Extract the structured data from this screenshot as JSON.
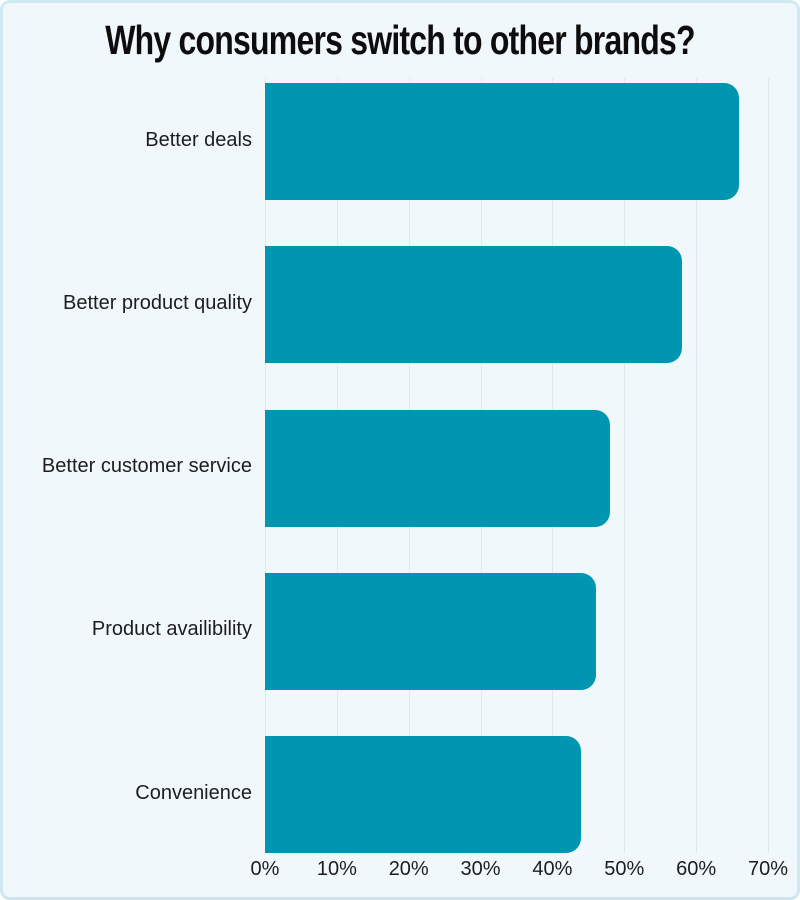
{
  "title": "Why consumers switch to other brands?",
  "colors": {
    "bar": "#0096b2",
    "card_background": "#f1f8fb",
    "card_border": "#cfe9f2",
    "gridline": "#e4e8ec",
    "title_text": "#0d0d0d",
    "label_text": "#1d1d1f"
  },
  "chart_data": {
    "type": "bar",
    "orientation": "horizontal",
    "title": "Why consumers switch to other brands?",
    "categories": [
      "Better deals",
      "Better product quality",
      "Better customer service",
      "Product availibility",
      "Convenience"
    ],
    "values": [
      66,
      58,
      48,
      46,
      44
    ],
    "unit": "%",
    "xlabel": "",
    "ylabel": "",
    "xlim": [
      0,
      70
    ],
    "x_tick_labels": [
      "0%",
      "10%",
      "20%",
      "30%",
      "40%",
      "50%",
      "60%",
      "70%"
    ],
    "x_tick_values": [
      0,
      10,
      20,
      30,
      40,
      50,
      60,
      70
    ],
    "grid": "vertical",
    "legend": "none"
  }
}
